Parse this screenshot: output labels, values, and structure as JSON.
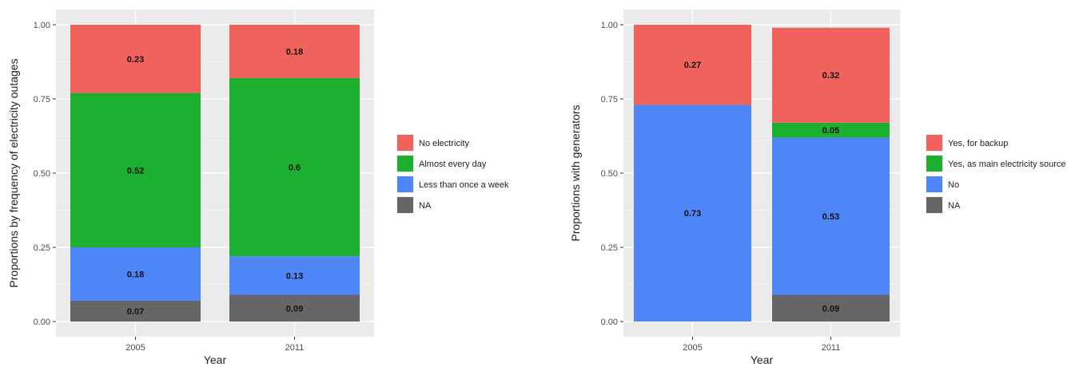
{
  "chart_data": [
    {
      "type": "bar",
      "stacked": true,
      "categories": [
        "2005",
        "2011"
      ],
      "xlabel": "Year",
      "ylabel": "Proportions by frequency of electricity outages",
      "ylim": [
        0,
        1
      ],
      "yticks": [
        "0.00",
        "0.25",
        "0.50",
        "0.75",
        "1.00"
      ],
      "grid": true,
      "legend_position": "right",
      "series": [
        {
          "name": "NA",
          "color": "#666666",
          "values": [
            0.07,
            0.09
          ],
          "labels": [
            "0.07",
            "0.09"
          ]
        },
        {
          "name": "Less than once a week",
          "color": "#4f86f7",
          "values": [
            0.18,
            0.13
          ],
          "labels": [
            "0.18",
            "0.13"
          ]
        },
        {
          "name": "Almost every day",
          "color": "#1db030",
          "values": [
            0.52,
            0.6
          ],
          "labels": [
            "0.52",
            "0.6"
          ]
        },
        {
          "name": "No electricity",
          "color": "#f2625c",
          "values": [
            0.23,
            0.18
          ],
          "labels": [
            "0.23",
            "0.18"
          ]
        }
      ],
      "legend_order": [
        "No electricity",
        "Almost every day",
        "Less than once a week",
        "NA"
      ]
    },
    {
      "type": "bar",
      "stacked": true,
      "categories": [
        "2005",
        "2011"
      ],
      "xlabel": "Year",
      "ylabel": "Proportions with generators",
      "ylim": [
        0,
        1
      ],
      "yticks": [
        "0.00",
        "0.25",
        "0.50",
        "0.75",
        "1.00"
      ],
      "grid": true,
      "legend_position": "right",
      "series": [
        {
          "name": "NA",
          "color": "#666666",
          "values": [
            0,
            0.09
          ],
          "labels": [
            "",
            "0.09"
          ]
        },
        {
          "name": "No",
          "color": "#4f86f7",
          "values": [
            0.73,
            0.53
          ],
          "labels": [
            "0.73",
            "0.53"
          ]
        },
        {
          "name": "Yes, as main electricity source",
          "color": "#1db030",
          "values": [
            0,
            0.05
          ],
          "labels": [
            "",
            "0.05"
          ]
        },
        {
          "name": "Yes, for backup",
          "color": "#f2625c",
          "values": [
            0.27,
            0.32
          ],
          "labels": [
            "0.27",
            "0.32"
          ]
        }
      ],
      "legend_order": [
        "Yes, for backup",
        "Yes, as main electricity source",
        "No",
        "NA"
      ]
    }
  ]
}
